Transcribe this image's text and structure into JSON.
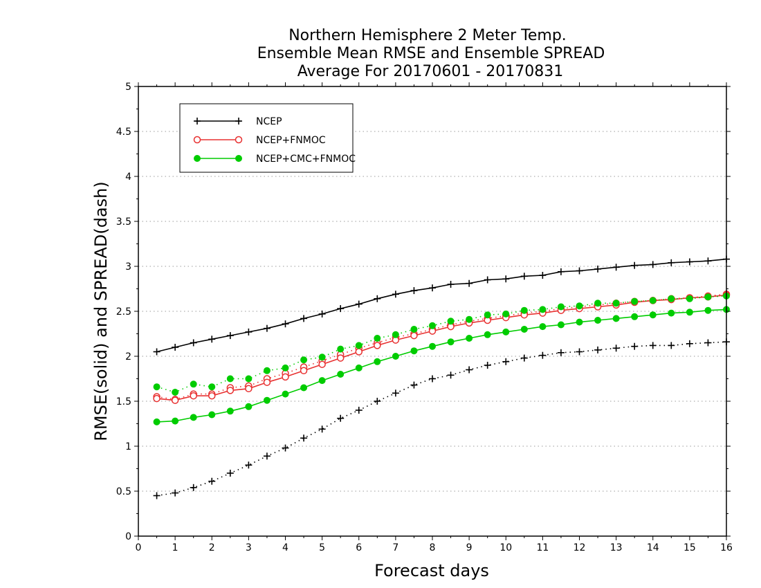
{
  "chart_data": {
    "type": "line",
    "title": [
      "Northern Hemisphere 2 Meter Temp.",
      "Ensemble Mean RMSE and Ensemble SPREAD",
      "Average For 20170601 - 20170831"
    ],
    "xlabel": "Forecast days",
    "ylabel": "RMSE(solid) and SPREAD(dash)",
    "xlim": [
      0,
      16
    ],
    "ylim": [
      0,
      5
    ],
    "xticks": [
      "0",
      "1",
      "2",
      "3",
      "4",
      "5",
      "6",
      "7",
      "8",
      "9",
      "10",
      "11",
      "12",
      "13",
      "14",
      "15",
      "16"
    ],
    "yticks": [
      "0",
      "0.5",
      "1",
      "1.5",
      "2",
      "2.5",
      "3",
      "3.5",
      "4",
      "4.5",
      "5"
    ],
    "grid": "horizontal dotted",
    "legend_position": "top-left",
    "x": [
      0.5,
      1,
      1.5,
      2,
      2.5,
      3,
      3.5,
      4,
      4.5,
      5,
      5.5,
      6,
      6.5,
      7,
      7.5,
      8,
      8.5,
      9,
      9.5,
      10,
      10.5,
      11,
      11.5,
      12,
      12.5,
      13,
      13.5,
      14,
      14.5,
      15,
      15.5,
      16
    ],
    "series": [
      {
        "name": "NCEP",
        "color": "#000000",
        "marker": "plus",
        "rmse": [
          2.05,
          2.1,
          2.15,
          2.19,
          2.23,
          2.27,
          2.31,
          2.36,
          2.42,
          2.47,
          2.53,
          2.58,
          2.64,
          2.69,
          2.73,
          2.76,
          2.8,
          2.81,
          2.85,
          2.86,
          2.89,
          2.9,
          2.94,
          2.95,
          2.97,
          2.99,
          3.01,
          3.02,
          3.04,
          3.05,
          3.06,
          3.08
        ],
        "spread": [
          0.45,
          0.48,
          0.54,
          0.61,
          0.7,
          0.79,
          0.89,
          0.98,
          1.09,
          1.19,
          1.31,
          1.4,
          1.5,
          1.59,
          1.68,
          1.75,
          1.79,
          1.85,
          1.9,
          1.94,
          1.98,
          2.01,
          2.04,
          2.05,
          2.07,
          2.09,
          2.11,
          2.12,
          2.12,
          2.14,
          2.15,
          2.16
        ]
      },
      {
        "name": "NCEP+FNMOC",
        "color": "#e83030",
        "marker": "open-circle",
        "rmse": [
          1.53,
          1.51,
          1.56,
          1.56,
          1.62,
          1.64,
          1.71,
          1.77,
          1.84,
          1.91,
          1.98,
          2.05,
          2.12,
          2.18,
          2.23,
          2.28,
          2.33,
          2.37,
          2.4,
          2.43,
          2.46,
          2.48,
          2.51,
          2.53,
          2.55,
          2.57,
          2.6,
          2.62,
          2.63,
          2.65,
          2.66,
          2.68
        ],
        "spread": [
          1.55,
          1.52,
          1.58,
          1.58,
          1.65,
          1.67,
          1.75,
          1.81,
          1.88,
          1.95,
          2.02,
          2.09,
          2.15,
          2.21,
          2.25,
          2.3,
          2.35,
          2.39,
          2.42,
          2.45,
          2.48,
          2.5,
          2.53,
          2.55,
          2.57,
          2.59,
          2.61,
          2.62,
          2.64,
          2.65,
          2.67,
          2.69
        ]
      },
      {
        "name": "NCEP+CMC+FNMOC",
        "color": "#00cc00",
        "marker": "filled-circle",
        "rmse": [
          1.27,
          1.28,
          1.32,
          1.35,
          1.39,
          1.44,
          1.51,
          1.58,
          1.65,
          1.73,
          1.8,
          1.87,
          1.94,
          2.0,
          2.06,
          2.11,
          2.16,
          2.2,
          2.24,
          2.27,
          2.3,
          2.33,
          2.35,
          2.38,
          2.4,
          2.42,
          2.44,
          2.46,
          2.48,
          2.49,
          2.51,
          2.52
        ],
        "spread": [
          1.66,
          1.6,
          1.69,
          1.66,
          1.75,
          1.75,
          1.84,
          1.87,
          1.96,
          1.99,
          2.08,
          2.12,
          2.2,
          2.24,
          2.3,
          2.34,
          2.39,
          2.41,
          2.46,
          2.47,
          2.51,
          2.52,
          2.55,
          2.56,
          2.59,
          2.59,
          2.61,
          2.62,
          2.64,
          2.64,
          2.66,
          2.67
        ]
      }
    ]
  }
}
